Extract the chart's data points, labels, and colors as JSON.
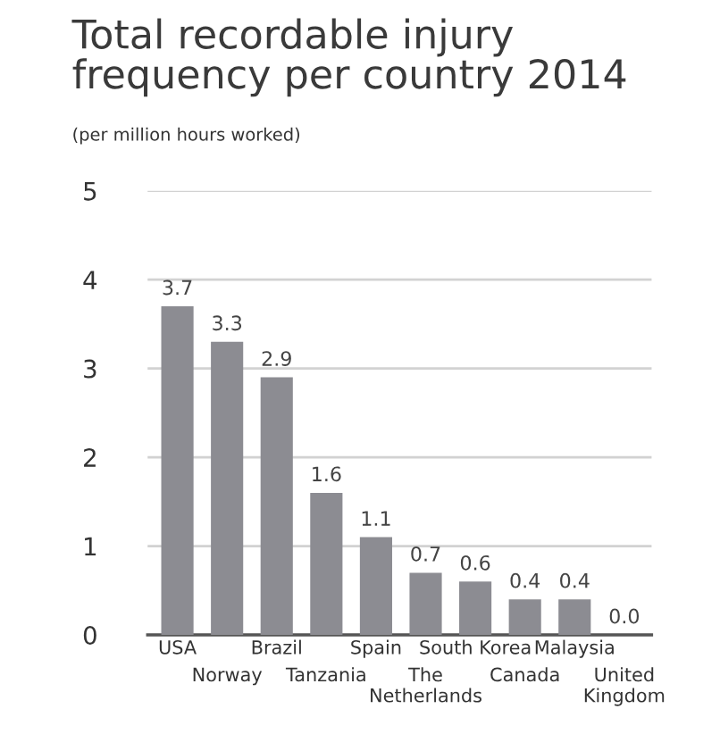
{
  "chart_data": {
    "type": "bar",
    "title": "Total recordable injury\nfrequency per country 2014",
    "subtitle": "(per million hours worked)",
    "categories": [
      "USA",
      "Norway",
      "Brazil",
      "Tanzania",
      "Spain",
      "The\nNetherlands",
      "South Korea",
      "Canada",
      "Malaysia",
      "United\nKingdom"
    ],
    "values": [
      3.7,
      3.3,
      2.9,
      1.6,
      1.1,
      0.7,
      0.6,
      0.4,
      0.4,
      0.0
    ],
    "value_labels": [
      "3.7",
      "3.3",
      "2.9",
      "1.6",
      "1.1",
      "0.7",
      "0.6",
      "0.4",
      "0.4",
      "0.0"
    ],
    "color": "#8c8c92",
    "ylim": [
      0,
      5
    ],
    "yticks": [
      0,
      1,
      2,
      3,
      4,
      5
    ],
    "grid": "y",
    "legend": false
  }
}
